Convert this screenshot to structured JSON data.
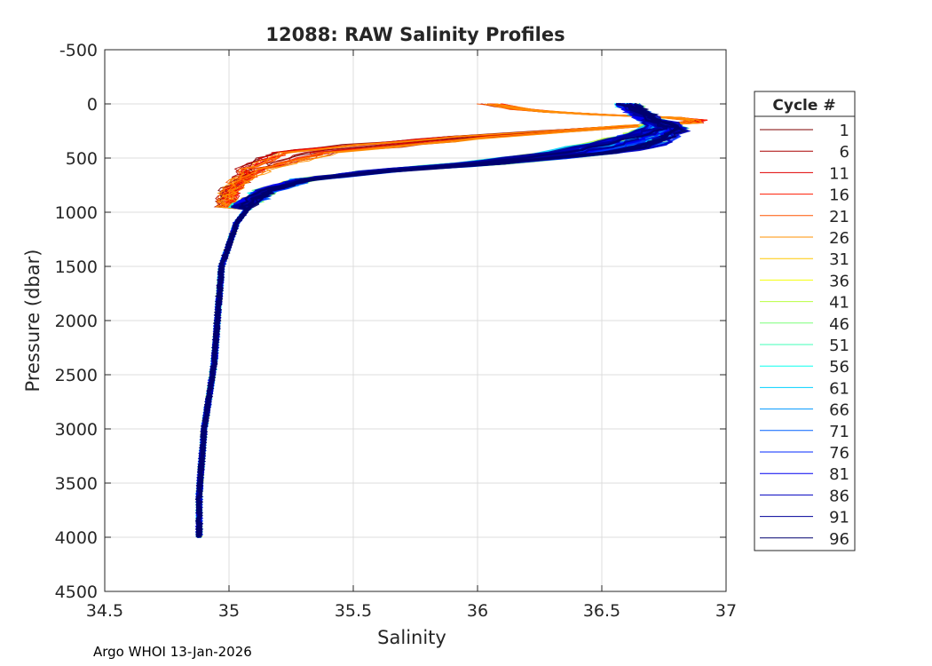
{
  "chart_data": {
    "type": "line",
    "title": "12088: RAW Salinity Profiles",
    "xlabel": "Salinity",
    "ylabel": "Pressure (dbar)",
    "xlim": [
      34.5,
      37
    ],
    "ylim": [
      4500,
      -500
    ],
    "y_reversed": true,
    "grid": true,
    "xticks": [
      34.5,
      35,
      35.5,
      36,
      36.5,
      37
    ],
    "xtick_labels": [
      "34.5",
      "35",
      "35.5",
      "36",
      "36.5",
      "37"
    ],
    "yticks": [
      -500,
      0,
      500,
      1000,
      1500,
      2000,
      2500,
      3000,
      3500,
      4000,
      4500
    ],
    "ytick_labels": [
      "-500",
      "0",
      "500",
      "1000",
      "1500",
      "2000",
      "2500",
      "3000",
      "3500",
      "4000",
      "4500"
    ],
    "legend": {
      "title": "Cycle #",
      "placement": "outside-right",
      "entries": [
        {
          "label": "1",
          "color": "#7f0000"
        },
        {
          "label": "6",
          "color": "#a80000"
        },
        {
          "label": "11",
          "color": "#e00000"
        },
        {
          "label": "16",
          "color": "#ff1a00"
        },
        {
          "label": "21",
          "color": "#ff5500"
        },
        {
          "label": "26",
          "color": "#ff9000"
        },
        {
          "label": "31",
          "color": "#ffc800"
        },
        {
          "label": "36",
          "color": "#f5ff0a"
        },
        {
          "label": "41",
          "color": "#b8ff40"
        },
        {
          "label": "46",
          "color": "#7cff7a"
        },
        {
          "label": "51",
          "color": "#40ffb8"
        },
        {
          "label": "56",
          "color": "#0affee"
        },
        {
          "label": "61",
          "color": "#00d0ff"
        },
        {
          "label": "66",
          "color": "#0098ff"
        },
        {
          "label": "71",
          "color": "#0060ff"
        },
        {
          "label": "76",
          "color": "#0028ff"
        },
        {
          "label": "81",
          "color": "#0000f0"
        },
        {
          "label": "86",
          "color": "#0000c0"
        },
        {
          "label": "91",
          "color": "#000098"
        },
        {
          "label": "96",
          "color": "#00006e"
        }
      ]
    },
    "series_shape": {
      "deep_profile": {
        "salinity": [
          34.88,
          34.88,
          34.89,
          34.9,
          34.92,
          34.94,
          34.95,
          34.96,
          34.97,
          35.0,
          35.03,
          35.08
        ],
        "pressure": [
          4000,
          3600,
          3300,
          3000,
          2700,
          2400,
          2100,
          1800,
          1500,
          1300,
          1100,
          950
        ]
      },
      "red_early_cycles_upper": {
        "salinity": [
          34.98,
          35.0,
          35.1,
          35.3,
          35.6,
          36.0,
          36.4,
          36.7,
          36.9,
          36.85,
          36.7,
          36.5,
          36.2,
          36.05
        ],
        "pressure": [
          1000,
          800,
          600,
          450,
          380,
          300,
          240,
          190,
          170,
          130,
          120,
          100,
          60,
          0
        ]
      },
      "blue_late_cycles_upper": {
        "salinity": [
          35.05,
          35.15,
          35.3,
          35.6,
          36.0,
          36.4,
          36.6,
          36.75,
          36.7,
          36.65,
          36.6
        ],
        "pressure": [
          950,
          800,
          700,
          620,
          550,
          450,
          350,
          220,
          150,
          80,
          0
        ]
      }
    }
  },
  "footer": {
    "credit": "Argo WHOI 13-Jan-2026"
  }
}
